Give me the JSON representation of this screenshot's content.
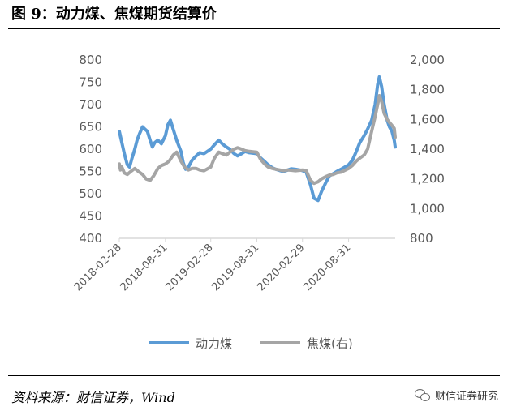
{
  "figure": {
    "title": "图 9：动力煤、焦煤期货结算价",
    "source": "资料来源：财信证券，Wind",
    "brand": "财信证券研究"
  },
  "chart_data": {
    "type": "line",
    "left_axis": {
      "ylim": [
        400,
        800
      ],
      "ticks": [
        "400",
        "450",
        "500",
        "550",
        "600",
        "650",
        "700",
        "750",
        "800"
      ]
    },
    "right_axis": {
      "ylim": [
        800,
        2000
      ],
      "ticks": [
        "800",
        "1,000",
        "1,200",
        "1,400",
        "1,600",
        "1,800",
        "2,000"
      ]
    },
    "x_range": [
      "2018-02-28",
      "2021-03-05"
    ],
    "x_tick_labels": [
      "2018-02-28",
      "2018-08-31",
      "2019-02-28",
      "2019-08-31",
      "2020-02-29",
      "2020-08-31"
    ],
    "grid": false,
    "legend_position": "bottom",
    "series": [
      {
        "name": "动力煤",
        "axis": "left",
        "color": "#5b9bd5",
        "points": [
          [
            "2018-02-28",
            640
          ],
          [
            "2018-03-10",
            615
          ],
          [
            "2018-03-20",
            590
          ],
          [
            "2018-04-01",
            565
          ],
          [
            "2018-04-10",
            560
          ],
          [
            "2018-04-20",
            580
          ],
          [
            "2018-05-01",
            600
          ],
          [
            "2018-05-10",
            620
          ],
          [
            "2018-05-20",
            635
          ],
          [
            "2018-06-01",
            650
          ],
          [
            "2018-06-10",
            645
          ],
          [
            "2018-06-20",
            640
          ],
          [
            "2018-07-01",
            620
          ],
          [
            "2018-07-10",
            605
          ],
          [
            "2018-07-20",
            615
          ],
          [
            "2018-08-01",
            620
          ],
          [
            "2018-08-15",
            612
          ],
          [
            "2018-08-31",
            630
          ],
          [
            "2018-09-10",
            655
          ],
          [
            "2018-09-20",
            665
          ],
          [
            "2018-10-01",
            645
          ],
          [
            "2018-10-15",
            620
          ],
          [
            "2018-11-01",
            595
          ],
          [
            "2018-11-10",
            570
          ],
          [
            "2018-11-20",
            555
          ],
          [
            "2018-12-01",
            560
          ],
          [
            "2018-12-15",
            575
          ],
          [
            "2019-01-01",
            585
          ],
          [
            "2019-01-15",
            592
          ],
          [
            "2019-02-01",
            590
          ],
          [
            "2019-02-28",
            600
          ],
          [
            "2019-03-15",
            610
          ],
          [
            "2019-04-01",
            620
          ],
          [
            "2019-04-15",
            612
          ],
          [
            "2019-05-01",
            605
          ],
          [
            "2019-05-15",
            600
          ],
          [
            "2019-06-01",
            590
          ],
          [
            "2019-06-15",
            585
          ],
          [
            "2019-07-01",
            590
          ],
          [
            "2019-07-15",
            595
          ],
          [
            "2019-08-01",
            592
          ],
          [
            "2019-08-31",
            590
          ],
          [
            "2019-09-15",
            580
          ],
          [
            "2019-10-01",
            572
          ],
          [
            "2019-10-15",
            565
          ],
          [
            "2019-11-01",
            558
          ],
          [
            "2019-11-15",
            555
          ],
          [
            "2019-12-01",
            552
          ],
          [
            "2019-12-15",
            550
          ],
          [
            "2020-01-01",
            553
          ],
          [
            "2020-01-15",
            556
          ],
          [
            "2020-02-01",
            555
          ],
          [
            "2020-02-29",
            552
          ],
          [
            "2020-03-15",
            548
          ],
          [
            "2020-04-01",
            520
          ],
          [
            "2020-04-15",
            490
          ],
          [
            "2020-05-01",
            485
          ],
          [
            "2020-05-15",
            505
          ],
          [
            "2020-06-01",
            525
          ],
          [
            "2020-06-15",
            540
          ],
          [
            "2020-07-01",
            545
          ],
          [
            "2020-07-15",
            550
          ],
          [
            "2020-08-01",
            555
          ],
          [
            "2020-08-31",
            565
          ],
          [
            "2020-09-15",
            575
          ],
          [
            "2020-10-01",
            595
          ],
          [
            "2020-10-15",
            615
          ],
          [
            "2020-11-01",
            630
          ],
          [
            "2020-11-15",
            645
          ],
          [
            "2020-12-01",
            665
          ],
          [
            "2020-12-15",
            700
          ],
          [
            "2020-12-25",
            745
          ],
          [
            "2021-01-01",
            762
          ],
          [
            "2021-01-10",
            740
          ],
          [
            "2021-01-20",
            700
          ],
          [
            "2021-02-01",
            665
          ],
          [
            "2021-02-10",
            650
          ],
          [
            "2021-02-20",
            640
          ],
          [
            "2021-03-01",
            620
          ],
          [
            "2021-03-05",
            605
          ]
        ]
      },
      {
        "name": "焦煤(右)",
        "axis": "right",
        "color": "#a5a5a5",
        "points": [
          [
            "2018-02-28",
            1300
          ],
          [
            "2018-03-05",
            1260
          ],
          [
            "2018-03-10",
            1280
          ],
          [
            "2018-03-20",
            1240
          ],
          [
            "2018-04-01",
            1230
          ],
          [
            "2018-04-15",
            1250
          ],
          [
            "2018-05-01",
            1270
          ],
          [
            "2018-05-15",
            1250
          ],
          [
            "2018-06-01",
            1230
          ],
          [
            "2018-06-15",
            1200
          ],
          [
            "2018-07-01",
            1190
          ],
          [
            "2018-07-15",
            1220
          ],
          [
            "2018-08-01",
            1270
          ],
          [
            "2018-08-15",
            1290
          ],
          [
            "2018-08-31",
            1300
          ],
          [
            "2018-09-15",
            1320
          ],
          [
            "2018-10-01",
            1360
          ],
          [
            "2018-10-15",
            1380
          ],
          [
            "2018-11-01",
            1320
          ],
          [
            "2018-11-15",
            1280
          ],
          [
            "2018-12-01",
            1260
          ],
          [
            "2018-12-15",
            1270
          ],
          [
            "2019-01-01",
            1270
          ],
          [
            "2019-01-15",
            1260
          ],
          [
            "2019-02-01",
            1255
          ],
          [
            "2019-02-28",
            1280
          ],
          [
            "2019-03-15",
            1340
          ],
          [
            "2019-04-01",
            1380
          ],
          [
            "2019-04-15",
            1370
          ],
          [
            "2019-05-01",
            1360
          ],
          [
            "2019-05-15",
            1380
          ],
          [
            "2019-06-01",
            1400
          ],
          [
            "2019-06-15",
            1410
          ],
          [
            "2019-07-01",
            1400
          ],
          [
            "2019-07-15",
            1390
          ],
          [
            "2019-08-01",
            1385
          ],
          [
            "2019-08-31",
            1380
          ],
          [
            "2019-09-15",
            1330
          ],
          [
            "2019-10-01",
            1300
          ],
          [
            "2019-10-15",
            1280
          ],
          [
            "2019-11-01",
            1270
          ],
          [
            "2019-11-15",
            1265
          ],
          [
            "2019-12-01",
            1260
          ],
          [
            "2019-12-15",
            1255
          ],
          [
            "2020-01-01",
            1260
          ],
          [
            "2020-01-15",
            1258
          ],
          [
            "2020-02-01",
            1255
          ],
          [
            "2020-02-29",
            1260
          ],
          [
            "2020-03-15",
            1255
          ],
          [
            "2020-04-01",
            1190
          ],
          [
            "2020-04-15",
            1170
          ],
          [
            "2020-05-01",
            1180
          ],
          [
            "2020-05-15",
            1200
          ],
          [
            "2020-06-01",
            1215
          ],
          [
            "2020-06-15",
            1225
          ],
          [
            "2020-07-01",
            1230
          ],
          [
            "2020-07-15",
            1240
          ],
          [
            "2020-08-01",
            1245
          ],
          [
            "2020-08-31",
            1270
          ],
          [
            "2020-09-15",
            1290
          ],
          [
            "2020-10-01",
            1320
          ],
          [
            "2020-10-15",
            1340
          ],
          [
            "2020-11-01",
            1360
          ],
          [
            "2020-11-15",
            1400
          ],
          [
            "2020-12-01",
            1520
          ],
          [
            "2020-12-15",
            1620
          ],
          [
            "2020-12-25",
            1700
          ],
          [
            "2021-01-01",
            1760
          ],
          [
            "2021-01-10",
            1720
          ],
          [
            "2021-01-20",
            1640
          ],
          [
            "2021-02-01",
            1600
          ],
          [
            "2021-02-10",
            1580
          ],
          [
            "2021-02-20",
            1560
          ],
          [
            "2021-03-01",
            1540
          ],
          [
            "2021-03-05",
            1480
          ]
        ]
      }
    ]
  }
}
